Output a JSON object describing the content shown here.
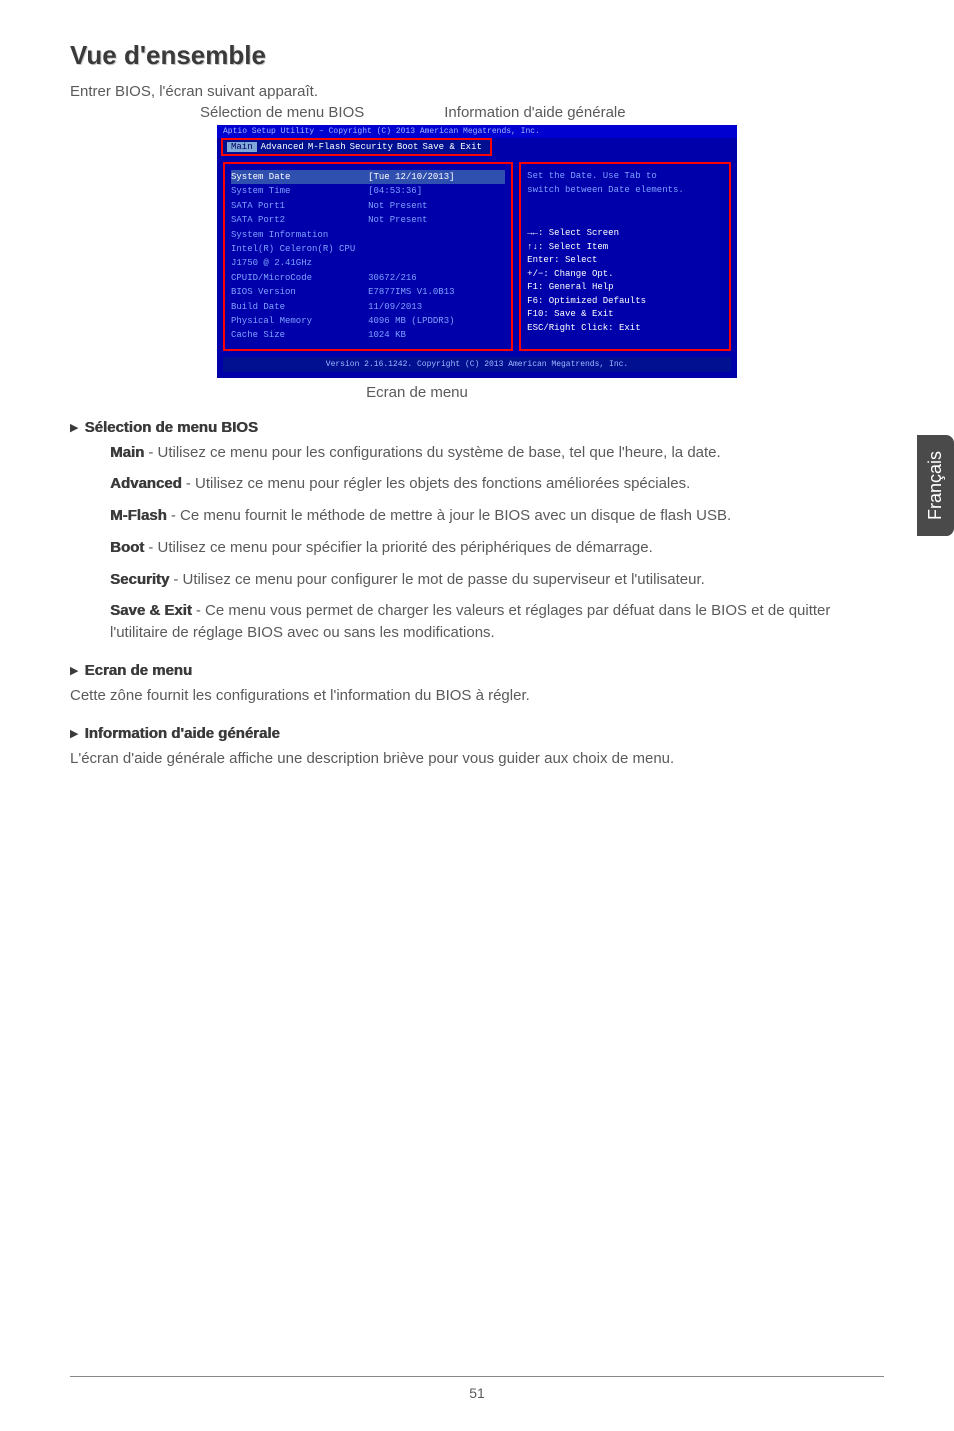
{
  "title": "Vue d'ensemble",
  "intro": "Entrer BIOS, l'écran suivant apparaît.",
  "label_menu_selection": "Sélection de menu BIOS",
  "label_general_help": "Information d'aide générale",
  "caption_menu_screen": "Ecran de menu",
  "side_tab": "Français",
  "bios": {
    "top": "Aptio Setup Utility – Copyright (C) 2013 American Megatrends, Inc.",
    "tabs": [
      "Main",
      "Advanced",
      "M-Flash",
      "Security",
      "Boot",
      "Save & Exit"
    ],
    "rows": [
      {
        "k": "System Date",
        "v": "[Tue 12/10/2013]",
        "hl": true
      },
      {
        "k": "System Time",
        "v": "[04:53:36]"
      },
      {
        "k": "",
        "v": ""
      },
      {
        "k": "SATA Port1",
        "v": "Not Present"
      },
      {
        "k": "SATA Port2",
        "v": "Not Present"
      },
      {
        "k": "",
        "v": ""
      },
      {
        "k": "System Information",
        "v": ""
      },
      {
        "k": "Intel(R) Celeron(R) CPU J1750 @ 2.41GHz",
        "v": ""
      },
      {
        "k": "CPUID/MicroCode",
        "v": "30672/216"
      },
      {
        "k": "BIOS Version",
        "v": "E7877IMS V1.0B13"
      },
      {
        "k": "Build Date",
        "v": "11/09/2013"
      },
      {
        "k": "Physical Memory",
        "v": "4096 MB (LPDDR3)"
      },
      {
        "k": "Cache Size",
        "v": "1024 KB"
      }
    ],
    "help": [
      "Set the Date. Use Tab to",
      "switch between Date elements."
    ],
    "nav": [
      "→←: Select Screen",
      "↑↓: Select Item",
      "Enter: Select",
      "+/−: Change Opt.",
      "F1: General Help",
      "F6: Optimized Defaults",
      "F10: Save & Exit",
      "ESC/Right Click: Exit"
    ],
    "bottom": "Version 2.16.1242. Copyright (C) 2013 American Megatrends, Inc."
  },
  "sec_menu_selection": "Sélection de menu BIOS",
  "menu_items": [
    {
      "name": "Main",
      "desc": " - Utilisez ce menu pour les configurations du système de base, tel que l'heure, la date."
    },
    {
      "name": "Advanced",
      "desc": " - Utilisez ce menu pour régler les objets des fonctions améliorées spéciales."
    },
    {
      "name": "M-Flash",
      "desc": " - Ce menu fournit le méthode de mettre à jour le BIOS avec un disque de flash USB."
    },
    {
      "name": "Boot",
      "desc": " - Utilisez ce menu pour spécifier la priorité des périphériques de démarrage."
    },
    {
      "name": "Security",
      "desc": " - Utilisez ce menu pour configurer le mot de passe du superviseur et l'utilisateur."
    },
    {
      "name": "Save & Exit",
      "desc": " - Ce menu vous permet de charger les valeurs et réglages par défuat dans le BIOS et de quitter l'utilitaire de réglage BIOS avec ou sans les modifications."
    }
  ],
  "sec_menu_screen": "Ecran de menu",
  "menu_screen_desc": "Cette zône fournit les configurations et l'information du BIOS à régler.",
  "sec_general_help": "Information d'aide générale",
  "general_help_desc": "L'écran d'aide générale affiche une description briève pour vous guider aux choix de menu.",
  "page_number": "51"
}
